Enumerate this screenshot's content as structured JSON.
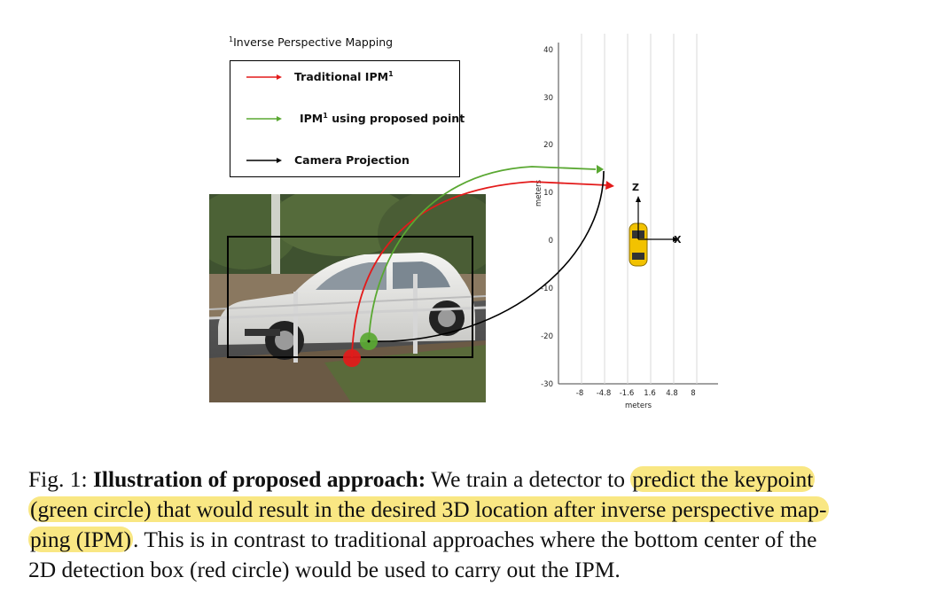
{
  "figure": {
    "footnote_marker": "1",
    "footnote_text": "Inverse Perspective Mapping",
    "legend": {
      "items": [
        {
          "label_pre": "Traditional IPM",
          "sup": "1",
          "label_post": "",
          "color": "#e31a1a"
        },
        {
          "label_pre": "IPM",
          "sup": "1",
          "label_post": " using proposed point",
          "color": "#5aa832"
        },
        {
          "label_pre": "Camera Projection",
          "sup": "",
          "label_post": "",
          "color": "#000000"
        }
      ]
    },
    "bev_plot": {
      "ylabel": "meters",
      "xlabel": "meters",
      "y_ticks": [
        "40",
        "30",
        "20",
        "10",
        "0",
        "-10",
        "-20",
        "-30"
      ],
      "x_ticks": [
        "-8",
        "-4.8",
        "-1.6",
        "1.6",
        "4.8",
        "8"
      ],
      "axis_z_label": "Z",
      "axis_x_label": "X",
      "car_color": "#f2c200"
    },
    "colors": {
      "red": "#e31a1a",
      "green": "#5aa832",
      "black": "#000000",
      "highlight": "#f9e783"
    }
  },
  "caption": {
    "fig_label": "Fig. 1: ",
    "bold_title": "Illustration of proposed approach:",
    "text_1": " We train a detector to ",
    "highlight_1": "predict the keypoint",
    "highlight_2": "(green circle) that would result in the desired 3D location after inverse perspective map-",
    "highlight_3": "ping (IPM)",
    "text_2": ". This is in contrast to traditional approaches where the bottom center of the",
    "text_3": "2D detection box (red circle) would be used to carry out the IPM."
  }
}
